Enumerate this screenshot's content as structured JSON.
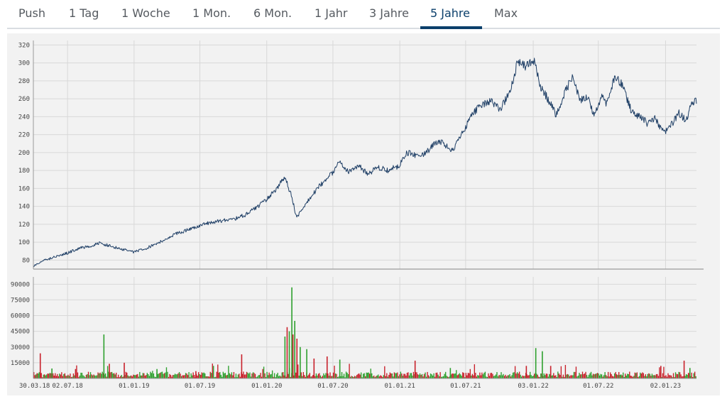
{
  "tabs": [
    {
      "label": "Push",
      "active": false
    },
    {
      "label": "1 Tag",
      "active": false
    },
    {
      "label": "1 Woche",
      "active": false
    },
    {
      "label": "1 Mon.",
      "active": false
    },
    {
      "label": "6 Mon.",
      "active": false
    },
    {
      "label": "1 Jahr",
      "active": false
    },
    {
      "label": "3 Jahre",
      "active": false
    },
    {
      "label": "5 Jahre",
      "active": true
    },
    {
      "label": "Max",
      "active": false
    }
  ],
  "colors": {
    "accent": "#0b3f6b",
    "price_line": "#1f3f66",
    "volume_up": "#2ea02e",
    "volume_down": "#c8202a",
    "grid": "#d8d8d8",
    "panel_bg": "#f2f2f2"
  },
  "chart_data": [
    {
      "type": "line",
      "name": "price",
      "ylim": [
        70,
        325
      ],
      "yticks": [
        80,
        100,
        120,
        140,
        160,
        180,
        200,
        220,
        240,
        260,
        280,
        300,
        320
      ],
      "grid": true,
      "x_range": [
        "2018-03-30",
        "2023-03-28"
      ],
      "points": [
        [
          "2018-03-30",
          73
        ],
        [
          "2018-05-01",
          80
        ],
        [
          "2018-06-01",
          84
        ],
        [
          "2018-07-02",
          88
        ],
        [
          "2018-08-01",
          93
        ],
        [
          "2018-09-03",
          96
        ],
        [
          "2018-10-01",
          99
        ],
        [
          "2018-11-01",
          95
        ],
        [
          "2018-12-01",
          92
        ],
        [
          "2019-01-01",
          89
        ],
        [
          "2019-02-01",
          93
        ],
        [
          "2019-03-01",
          98
        ],
        [
          "2019-04-01",
          104
        ],
        [
          "2019-05-01",
          110
        ],
        [
          "2019-06-01",
          114
        ],
        [
          "2019-07-01",
          119
        ],
        [
          "2019-08-01",
          122
        ],
        [
          "2019-09-01",
          124
        ],
        [
          "2019-10-01",
          126
        ],
        [
          "2019-11-01",
          130
        ],
        [
          "2019-12-01",
          138
        ],
        [
          "2020-01-01",
          148
        ],
        [
          "2020-02-01",
          162
        ],
        [
          "2020-02-20",
          173
        ],
        [
          "2020-03-10",
          150
        ],
        [
          "2020-03-23",
          127
        ],
        [
          "2020-04-15",
          142
        ],
        [
          "2020-05-15",
          158
        ],
        [
          "2020-06-15",
          172
        ],
        [
          "2020-07-01",
          178
        ],
        [
          "2020-07-20",
          190
        ],
        [
          "2020-08-15",
          178
        ],
        [
          "2020-09-10",
          186
        ],
        [
          "2020-10-05",
          176
        ],
        [
          "2020-11-01",
          184
        ],
        [
          "2020-12-01",
          180
        ],
        [
          "2021-01-01",
          186
        ],
        [
          "2021-01-20",
          200
        ],
        [
          "2021-02-15",
          196
        ],
        [
          "2021-03-15",
          200
        ],
        [
          "2021-04-10",
          212
        ],
        [
          "2021-05-05",
          210
        ],
        [
          "2021-05-20",
          200
        ],
        [
          "2021-06-15",
          216
        ],
        [
          "2021-07-15",
          240
        ],
        [
          "2021-08-15",
          254
        ],
        [
          "2021-09-10",
          258
        ],
        [
          "2021-10-05",
          248
        ],
        [
          "2021-11-01",
          270
        ],
        [
          "2021-11-22",
          302
        ],
        [
          "2021-12-15",
          296
        ],
        [
          "2022-01-05",
          302
        ],
        [
          "2022-01-25",
          272
        ],
        [
          "2022-02-15",
          258
        ],
        [
          "2022-03-07",
          242
        ],
        [
          "2022-03-30",
          266
        ],
        [
          "2022-04-20",
          284
        ],
        [
          "2022-05-12",
          258
        ],
        [
          "2022-06-01",
          262
        ],
        [
          "2022-06-20",
          240
        ],
        [
          "2022-07-10",
          262
        ],
        [
          "2022-07-25",
          254
        ],
        [
          "2022-08-15",
          284
        ],
        [
          "2022-09-05",
          276
        ],
        [
          "2022-09-30",
          246
        ],
        [
          "2022-10-25",
          240
        ],
        [
          "2022-11-15",
          232
        ],
        [
          "2022-12-05",
          238
        ],
        [
          "2022-12-28",
          222
        ],
        [
          "2023-01-20",
          232
        ],
        [
          "2023-02-08",
          244
        ],
        [
          "2023-02-28",
          236
        ],
        [
          "2023-03-15",
          258
        ],
        [
          "2023-03-28",
          256
        ]
      ]
    },
    {
      "type": "bar",
      "name": "volume",
      "ylim": [
        0,
        97000
      ],
      "yticks": [
        15000,
        30000,
        45000,
        60000,
        75000,
        90000
      ],
      "grid": true,
      "base_level": 4500,
      "spikes": [
        {
          "date": "2018-04-18",
          "value": 24000,
          "up": false
        },
        {
          "date": "2018-05-20",
          "value": 9500,
          "up": true
        },
        {
          "date": "2018-07-24",
          "value": 9000,
          "up": false
        },
        {
          "date": "2018-10-10",
          "value": 42000,
          "up": true
        },
        {
          "date": "2018-10-25",
          "value": 14000,
          "up": false
        },
        {
          "date": "2018-12-05",
          "value": 15000,
          "up": false
        },
        {
          "date": "2019-03-05",
          "value": 9000,
          "up": true
        },
        {
          "date": "2019-06-20",
          "value": 7000,
          "up": false
        },
        {
          "date": "2019-10-24",
          "value": 23000,
          "up": false
        },
        {
          "date": "2020-02-20",
          "value": 40000,
          "up": true
        },
        {
          "date": "2020-02-26",
          "value": 49000,
          "up": false
        },
        {
          "date": "2020-03-03",
          "value": 45000,
          "up": true
        },
        {
          "date": "2020-03-10",
          "value": 87000,
          "up": true
        },
        {
          "date": "2020-03-13",
          "value": 42000,
          "up": false
        },
        {
          "date": "2020-03-18",
          "value": 55000,
          "up": true
        },
        {
          "date": "2020-03-24",
          "value": 38000,
          "up": false
        },
        {
          "date": "2020-04-02",
          "value": 30000,
          "up": true
        },
        {
          "date": "2020-04-20",
          "value": 28000,
          "up": true
        },
        {
          "date": "2020-05-10",
          "value": 19000,
          "up": false
        },
        {
          "date": "2020-06-15",
          "value": 21000,
          "up": false
        },
        {
          "date": "2020-07-20",
          "value": 18000,
          "up": true
        },
        {
          "date": "2021-02-12",
          "value": 17000,
          "up": false
        },
        {
          "date": "2021-05-20",
          "value": 10000,
          "up": true
        },
        {
          "date": "2021-12-15",
          "value": 12000,
          "up": false
        },
        {
          "date": "2022-01-10",
          "value": 29000,
          "up": true
        },
        {
          "date": "2022-01-28",
          "value": 26000,
          "up": true
        },
        {
          "date": "2022-02-20",
          "value": 12000,
          "up": false
        },
        {
          "date": "2022-12-20",
          "value": 12000,
          "up": false
        },
        {
          "date": "2023-02-22",
          "value": 17000,
          "up": false
        },
        {
          "date": "2023-03-10",
          "value": 10000,
          "up": true
        }
      ]
    }
  ],
  "x_ticks": [
    {
      "label": "30.03.18",
      "date": "2018-03-30"
    },
    {
      "label": "02.07.18",
      "date": "2018-07-02"
    },
    {
      "label": "01.01.19",
      "date": "2019-01-01"
    },
    {
      "label": "01.07.19",
      "date": "2019-07-01"
    },
    {
      "label": "01.01.20",
      "date": "2020-01-01"
    },
    {
      "label": "01.07.20",
      "date": "2020-07-01"
    },
    {
      "label": "01.01.21",
      "date": "2021-01-01"
    },
    {
      "label": "01.07.21",
      "date": "2021-07-01"
    },
    {
      "label": "03.01.22",
      "date": "2022-01-03"
    },
    {
      "label": "01.07.22",
      "date": "2022-07-01"
    },
    {
      "label": "02.01.23",
      "date": "2023-01-02"
    }
  ]
}
